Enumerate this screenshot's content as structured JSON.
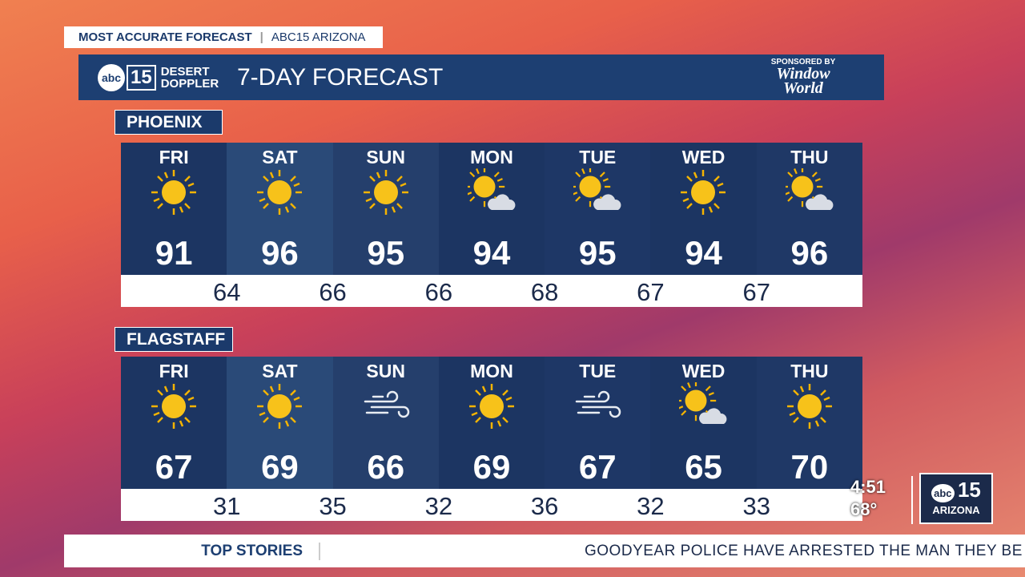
{
  "header": {
    "tag": "MOST ACCURATE FORECAST",
    "channel": "ABC15 ARIZONA"
  },
  "banner": {
    "logo_abc": "abc",
    "logo_num": "15",
    "brand_top": "DESERT",
    "brand_bottom": "DOPPLER",
    "title": "7-DAY FORECAST",
    "sponsor_label": "SPONSORED BY",
    "sponsor_top": "Window",
    "sponsor_bottom": "World"
  },
  "cities": [
    {
      "name": "PHOENIX",
      "days": [
        "FRI",
        "SAT",
        "SUN",
        "MON",
        "TUE",
        "WED",
        "THU"
      ],
      "highs": [
        91,
        96,
        95,
        94,
        95,
        94,
        96
      ],
      "lows": [
        64,
        66,
        66,
        68,
        67,
        67
      ]
    },
    {
      "name": "FLAGSTAFF",
      "days": [
        "FRI",
        "SAT",
        "SUN",
        "MON",
        "TUE",
        "WED",
        "THU"
      ],
      "highs": [
        67,
        69,
        66,
        69,
        67,
        65,
        70
      ],
      "lows": [
        31,
        35,
        32,
        36,
        32,
        33
      ]
    }
  ],
  "bug": {
    "time": "4:51",
    "temp": "68°",
    "logo_abc": "abc",
    "logo_num": "15",
    "logo_station": "ARIZONA"
  },
  "ticker": {
    "label": "TOP STORIES",
    "text": "GOODYEAR POLICE HAVE ARRESTED THE MAN THEY BE"
  }
}
